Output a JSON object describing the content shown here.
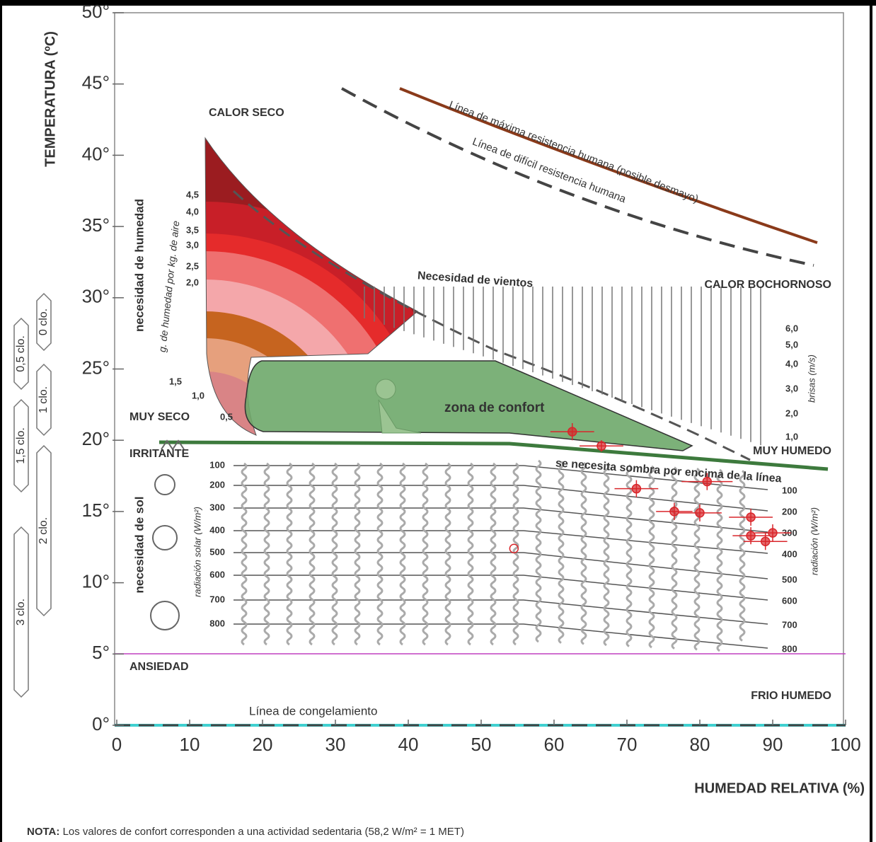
{
  "chart_data": {
    "type": "scatter",
    "x_label": "HUMEDAD RELATIVA (%)",
    "y_label": "TEMPERATURA (ºC)",
    "xlim": [
      0,
      100
    ],
    "ylim": [
      0,
      50
    ],
    "xticks": [
      0,
      10,
      20,
      30,
      40,
      50,
      60,
      70,
      80,
      90,
      100
    ],
    "yticks": [
      {
        "value": 0,
        "label": "0°"
      },
      {
        "value": 5,
        "label": "5°"
      },
      {
        "value": 10,
        "label": "10°"
      },
      {
        "value": 15,
        "label": "15°"
      },
      {
        "value": 20,
        "label": "20°"
      },
      {
        "value": 25,
        "label": "25°"
      },
      {
        "value": 30,
        "label": "30°"
      },
      {
        "value": 35,
        "label": "35°"
      },
      {
        "value": 40,
        "label": "40°"
      },
      {
        "value": 45,
        "label": "45°"
      },
      {
        "value": 50,
        "label": "50°"
      }
    ],
    "series": [
      {
        "color": "#d9262b",
        "marker": "filled",
        "x": [
          62.5,
          66.5,
          71.3,
          81,
          76.5,
          80,
          87,
          87,
          90,
          89
        ],
        "y": [
          20.6,
          19.6,
          16.6,
          17.1,
          15.0,
          14.9,
          14.6,
          13.3,
          13.5,
          12.9
        ],
        "xerr": [
          3,
          3,
          3,
          3.5,
          2.5,
          3,
          3,
          2.5,
          2.5,
          3
        ],
        "yerr": [
          0.6,
          0.4,
          0.6,
          0.6,
          0.6,
          0.6,
          0.6,
          0.6,
          0.6,
          0.6
        ]
      },
      {
        "color": "#d9262b",
        "marker": "hollow",
        "x": [
          54.5
        ],
        "y": [
          12.4
        ]
      }
    ],
    "annotations": [
      {
        "text": "CALOR SECO"
      },
      {
        "text": "CALOR BOCHORNOSO"
      },
      {
        "text": "MUY SECO"
      },
      {
        "text": "MUY HUMEDO"
      },
      {
        "text": "IRRITANTE"
      },
      {
        "text": "ANSIEDAD"
      },
      {
        "text": "FRIO HUMEDO"
      },
      {
        "text": "Línea de congelamiento"
      },
      {
        "text": "zona de confort"
      },
      {
        "text": "Necesidad de vientos"
      },
      {
        "text": "se necesita sombra por encima de la línea"
      },
      {
        "text": "Línea de máxima resistencia humana (posible desmayo)"
      },
      {
        "text": "Línea de difícil resistencia humana"
      },
      {
        "text": "necesidad de humedad"
      },
      {
        "text": "g. de humedad por kg. de aire"
      },
      {
        "text": "necesidad de sol"
      },
      {
        "text": "radiación solar (W/m²)"
      },
      {
        "text": "radiación (W/m²)"
      },
      {
        "text": "brisas (m/s)"
      }
    ],
    "humidity_labels": [
      "4,5",
      "4,0",
      "3,5",
      "3,0",
      "2,5",
      "2,0",
      "1,5",
      "1,0",
      "0,5"
    ],
    "wind_labels": [
      "6,0",
      "5,0",
      "4,0",
      "3,0",
      "2,0",
      "1,0"
    ],
    "radiation_labels": [
      100,
      200,
      300,
      400,
      500,
      600,
      700,
      800
    ],
    "clo_labels": [
      "0 clo.",
      "0,5 clo.",
      "1 clo.",
      "1,5 clo.",
      "2 clo.",
      "3 clo."
    ],
    "note_label": "NOTA:",
    "note_text": "Los valores de confort corresponden a una actividad sedentaria (58,2 W/m² = 1 MET)"
  }
}
